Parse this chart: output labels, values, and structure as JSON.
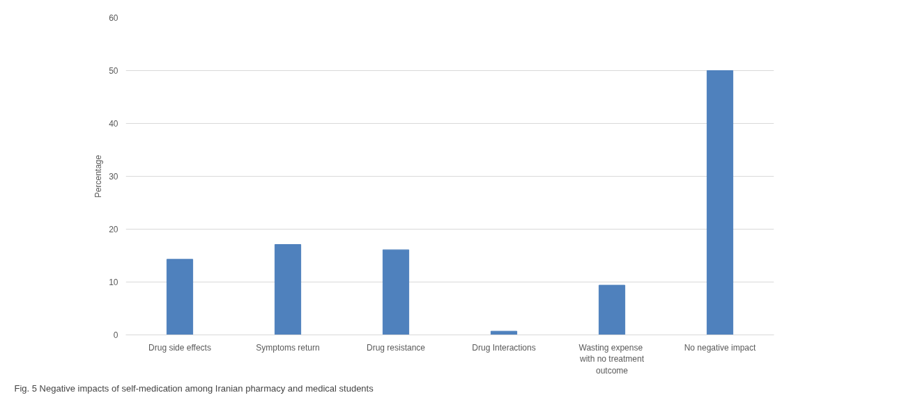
{
  "chart_data": {
    "type": "bar",
    "ylabel": "Percentage",
    "categories": [
      "Drug side effects",
      "Symptoms return",
      "Drug resistance",
      "Drug Interactions",
      "Wasting  expense\nwith no treatment\noutcome",
      "No negative impact"
    ],
    "values": [
      14.3,
      17.1,
      16.1,
      0.7,
      9.4,
      50
    ],
    "color": "#4f81bd",
    "ylim": [
      0,
      60
    ],
    "yticks": [
      0,
      10,
      20,
      30,
      40,
      50,
      60
    ],
    "grid": "y",
    "annotations": [
      "Fig. 5 Negative impacts of self-medication among Iranian pharmacy and medical students"
    ]
  }
}
